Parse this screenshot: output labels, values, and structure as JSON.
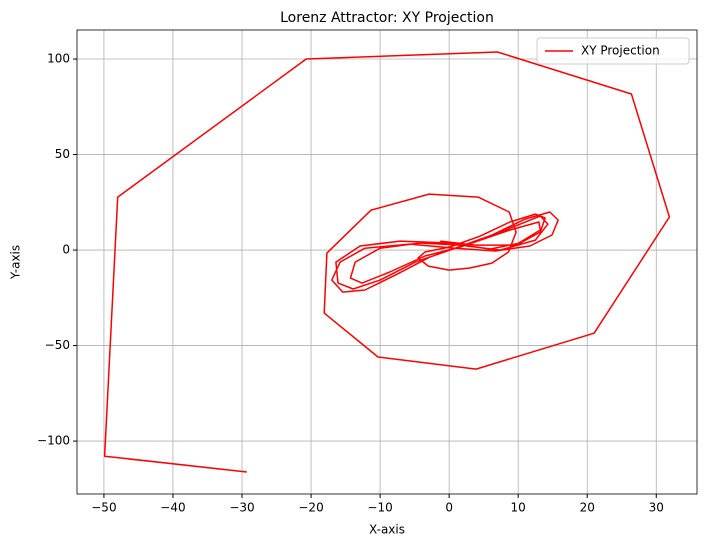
{
  "chart_data": {
    "type": "line",
    "title": "Lorenz Attractor: XY Projection",
    "x_label": "X-axis",
    "y_label": "Y-axis",
    "series": [
      {
        "name": "XY Projection",
        "color": "#ff0000",
        "x": [
          -29.3,
          -49.9,
          -48.0,
          -20.7,
          7.0,
          26.4,
          31.9,
          21.0,
          3.9,
          -10.3,
          -18.1,
          -17.7,
          -11.3,
          -2.9,
          4.2,
          8.7,
          9.7,
          8.6,
          6.2,
          3.0,
          0,
          -3.0,
          -4.5,
          -3.5,
          0.1,
          4.5,
          8.8,
          12.5,
          13.9,
          13.2,
          10.3,
          5.9,
          0.1,
          -7.1,
          -12.9,
          -16.4,
          -16.1,
          -13.9,
          -10,
          -4.9,
          0.1,
          5.9,
          11,
          14.6,
          15.8,
          14.9,
          11.7,
          6.7,
          0.9,
          -5.7,
          -12.2,
          -15.8,
          -17,
          -15.4,
          -12.2,
          -7.8,
          -2.8,
          0.9,
          7.4,
          13.2,
          14.3,
          12.5,
          7.4,
          1.6,
          -4.2,
          -10,
          -13.6,
          -14.3,
          -12.6,
          -8.6,
          -3.5,
          1.6,
          8.8,
          13,
          13.2,
          9.6,
          3.8,
          -1.3
        ],
        "values": [
          -116.2,
          -107.9,
          27.7,
          100,
          103.7,
          81.7,
          17.3,
          -43.5,
          -62.3,
          -56.0,
          -33.0,
          -1.6,
          20.9,
          29.3,
          27.7,
          19.9,
          9.4,
          -1,
          -6.8,
          -9.4,
          -10.5,
          -8.4,
          -4.2,
          -1,
          1.6,
          7.3,
          14.7,
          18.8,
          16.8,
          9.4,
          3.7,
          0.5,
          3.7,
          4.7,
          2.1,
          -6.3,
          -17.3,
          -20.4,
          -15.7,
          -6.3,
          0,
          7.3,
          16.2,
          19.9,
          15.7,
          7.9,
          2.1,
          -0.5,
          1,
          3.1,
          1,
          -6.3,
          -15.7,
          -22,
          -20.9,
          -13.1,
          -3.7,
          1,
          9.4,
          17.8,
          13.6,
          5.2,
          0,
          2.6,
          3.7,
          1,
          -6.3,
          -14.7,
          -17.3,
          -11.5,
          -3.1,
          1.6,
          10.5,
          14.7,
          10.5,
          2.6,
          2.6,
          4.7
        ]
      }
    ],
    "xlim": [
      -53.9,
      35.9
    ],
    "ylim": [
      -127.7,
      115.2
    ],
    "xticks": [
      {
        "value": -50,
        "label": "−50"
      },
      {
        "value": -40,
        "label": "−40"
      },
      {
        "value": -30,
        "label": "−30"
      },
      {
        "value": -20,
        "label": "−20"
      },
      {
        "value": -10,
        "label": "−10"
      },
      0,
      10,
      20,
      30
    ],
    "yticks": [
      {
        "value": -100,
        "label": "−100"
      },
      {
        "value": -50,
        "label": "−50"
      },
      0,
      50,
      100
    ],
    "grid": true,
    "legend": "upper-right"
  }
}
